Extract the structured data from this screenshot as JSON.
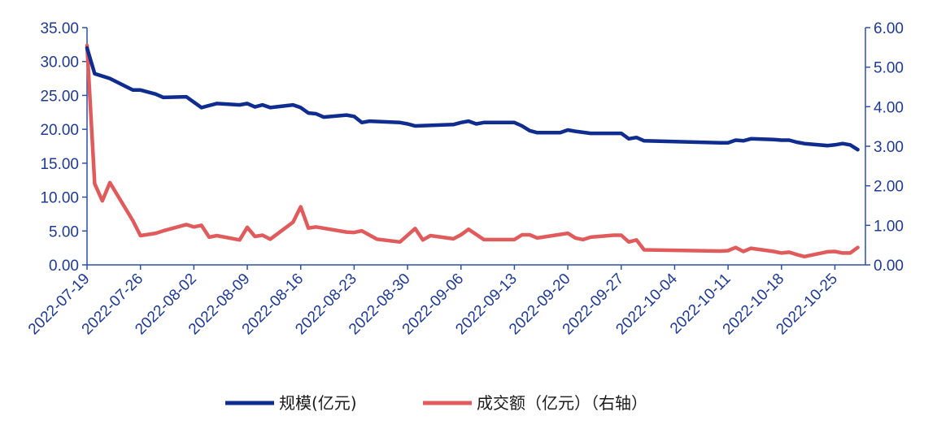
{
  "chart_data": {
    "type": "line",
    "title": "",
    "xlabel": "",
    "ylabel": "",
    "y2label": "",
    "ylim": [
      0,
      35
    ],
    "y2lim": [
      0,
      6
    ],
    "y_ticks": [
      "0.00",
      "5.00",
      "10.00",
      "15.00",
      "20.00",
      "25.00",
      "30.00",
      "35.00"
    ],
    "y2_ticks": [
      "0.00",
      "1.00",
      "2.00",
      "3.00",
      "4.00",
      "5.00",
      "6.00"
    ],
    "x_tick_labels": [
      "2022-07-19",
      "2022-07-26",
      "2022-08-02",
      "2022-08-09",
      "2022-08-16",
      "2022-08-23",
      "2022-08-30",
      "2022-09-06",
      "2022-09-13",
      "2022-09-20",
      "2022-09-27",
      "2022-10-04",
      "2022-10-11",
      "2022-10-18",
      "2022-10-25"
    ],
    "x_start": "2022-07-19",
    "x_end": "2022-10-29",
    "grid": false,
    "legend_position": "bottom",
    "series": [
      {
        "name": "规模(亿元)",
        "axis": "left",
        "color": "#0f2d8f",
        "points": [
          [
            "2022-07-19",
            32.0
          ],
          [
            "2022-07-20",
            28.2
          ],
          [
            "2022-07-22",
            27.5
          ],
          [
            "2022-07-25",
            25.8
          ],
          [
            "2022-07-26",
            25.8
          ],
          [
            "2022-07-28",
            25.2
          ],
          [
            "2022-07-29",
            24.7
          ],
          [
            "2022-08-01",
            24.8
          ],
          [
            "2022-08-03",
            23.2
          ],
          [
            "2022-08-05",
            23.8
          ],
          [
            "2022-08-08",
            23.6
          ],
          [
            "2022-08-09",
            23.8
          ],
          [
            "2022-08-10",
            23.3
          ],
          [
            "2022-08-11",
            23.6
          ],
          [
            "2022-08-12",
            23.2
          ],
          [
            "2022-08-15",
            23.6
          ],
          [
            "2022-08-16",
            23.2
          ],
          [
            "2022-08-17",
            22.4
          ],
          [
            "2022-08-18",
            22.3
          ],
          [
            "2022-08-19",
            21.8
          ],
          [
            "2022-08-22",
            22.1
          ],
          [
            "2022-08-23",
            21.9
          ],
          [
            "2022-08-24",
            21.0
          ],
          [
            "2022-08-25",
            21.2
          ],
          [
            "2022-08-29",
            21.0
          ],
          [
            "2022-08-30",
            20.8
          ],
          [
            "2022-08-31",
            20.5
          ],
          [
            "2022-09-05",
            20.7
          ],
          [
            "2022-09-06",
            21.0
          ],
          [
            "2022-09-07",
            21.2
          ],
          [
            "2022-09-08",
            20.8
          ],
          [
            "2022-09-09",
            21.0
          ],
          [
            "2022-09-13",
            21.0
          ],
          [
            "2022-09-14",
            20.5
          ],
          [
            "2022-09-15",
            19.8
          ],
          [
            "2022-09-16",
            19.5
          ],
          [
            "2022-09-19",
            19.5
          ],
          [
            "2022-09-20",
            19.9
          ],
          [
            "2022-09-21",
            19.7
          ],
          [
            "2022-09-23",
            19.4
          ],
          [
            "2022-09-27",
            19.4
          ],
          [
            "2022-09-28",
            18.6
          ],
          [
            "2022-09-29",
            18.8
          ],
          [
            "2022-09-30",
            18.3
          ],
          [
            "2022-10-10",
            18.0
          ],
          [
            "2022-10-11",
            18.0
          ],
          [
            "2022-10-12",
            18.4
          ],
          [
            "2022-10-13",
            18.3
          ],
          [
            "2022-10-14",
            18.6
          ],
          [
            "2022-10-17",
            18.5
          ],
          [
            "2022-10-18",
            18.4
          ],
          [
            "2022-10-19",
            18.4
          ],
          [
            "2022-10-20",
            18.1
          ],
          [
            "2022-10-21",
            17.9
          ],
          [
            "2022-10-24",
            17.6
          ],
          [
            "2022-10-25",
            17.7
          ],
          [
            "2022-10-26",
            17.9
          ],
          [
            "2022-10-27",
            17.7
          ],
          [
            "2022-10-28",
            17.0
          ]
        ]
      },
      {
        "name": "成交额（亿元）（右轴）",
        "axis": "right",
        "color": "#e05c5c",
        "points": [
          [
            "2022-07-19",
            5.55
          ],
          [
            "2022-07-20",
            2.05
          ],
          [
            "2022-07-21",
            1.62
          ],
          [
            "2022-07-22",
            2.08
          ],
          [
            "2022-07-25",
            1.12
          ],
          [
            "2022-07-26",
            0.74
          ],
          [
            "2022-07-28",
            0.8
          ],
          [
            "2022-07-29",
            0.86
          ],
          [
            "2022-08-01",
            1.02
          ],
          [
            "2022-08-02",
            0.96
          ],
          [
            "2022-08-03",
            1.0
          ],
          [
            "2022-08-04",
            0.7
          ],
          [
            "2022-08-05",
            0.74
          ],
          [
            "2022-08-08",
            0.63
          ],
          [
            "2022-08-09",
            0.95
          ],
          [
            "2022-08-10",
            0.72
          ],
          [
            "2022-08-11",
            0.75
          ],
          [
            "2022-08-12",
            0.65
          ],
          [
            "2022-08-15",
            1.08
          ],
          [
            "2022-08-16",
            1.47
          ],
          [
            "2022-08-17",
            0.93
          ],
          [
            "2022-08-18",
            0.96
          ],
          [
            "2022-08-22",
            0.83
          ],
          [
            "2022-08-23",
            0.82
          ],
          [
            "2022-08-24",
            0.86
          ],
          [
            "2022-08-26",
            0.65
          ],
          [
            "2022-08-29",
            0.58
          ],
          [
            "2022-08-30",
            0.75
          ],
          [
            "2022-08-31",
            0.92
          ],
          [
            "2022-09-01",
            0.63
          ],
          [
            "2022-09-02",
            0.74
          ],
          [
            "2022-09-05",
            0.66
          ],
          [
            "2022-09-06",
            0.76
          ],
          [
            "2022-09-07",
            0.9
          ],
          [
            "2022-09-09",
            0.64
          ],
          [
            "2022-09-13",
            0.64
          ],
          [
            "2022-09-14",
            0.76
          ],
          [
            "2022-09-15",
            0.76
          ],
          [
            "2022-09-16",
            0.68
          ],
          [
            "2022-09-20",
            0.8
          ],
          [
            "2022-09-21",
            0.68
          ],
          [
            "2022-09-22",
            0.64
          ],
          [
            "2022-09-23",
            0.7
          ],
          [
            "2022-09-26",
            0.75
          ],
          [
            "2022-09-27",
            0.75
          ],
          [
            "2022-09-28",
            0.58
          ],
          [
            "2022-09-29",
            0.63
          ],
          [
            "2022-09-30",
            0.38
          ],
          [
            "2022-10-10",
            0.35
          ],
          [
            "2022-10-11",
            0.36
          ],
          [
            "2022-10-12",
            0.44
          ],
          [
            "2022-10-13",
            0.34
          ],
          [
            "2022-10-14",
            0.42
          ],
          [
            "2022-10-17",
            0.34
          ],
          [
            "2022-10-18",
            0.3
          ],
          [
            "2022-10-19",
            0.32
          ],
          [
            "2022-10-20",
            0.26
          ],
          [
            "2022-10-21",
            0.21
          ],
          [
            "2022-10-24",
            0.33
          ],
          [
            "2022-10-25",
            0.34
          ],
          [
            "2022-10-26",
            0.3
          ],
          [
            "2022-10-27",
            0.3
          ],
          [
            "2022-10-28",
            0.44
          ]
        ]
      }
    ]
  }
}
